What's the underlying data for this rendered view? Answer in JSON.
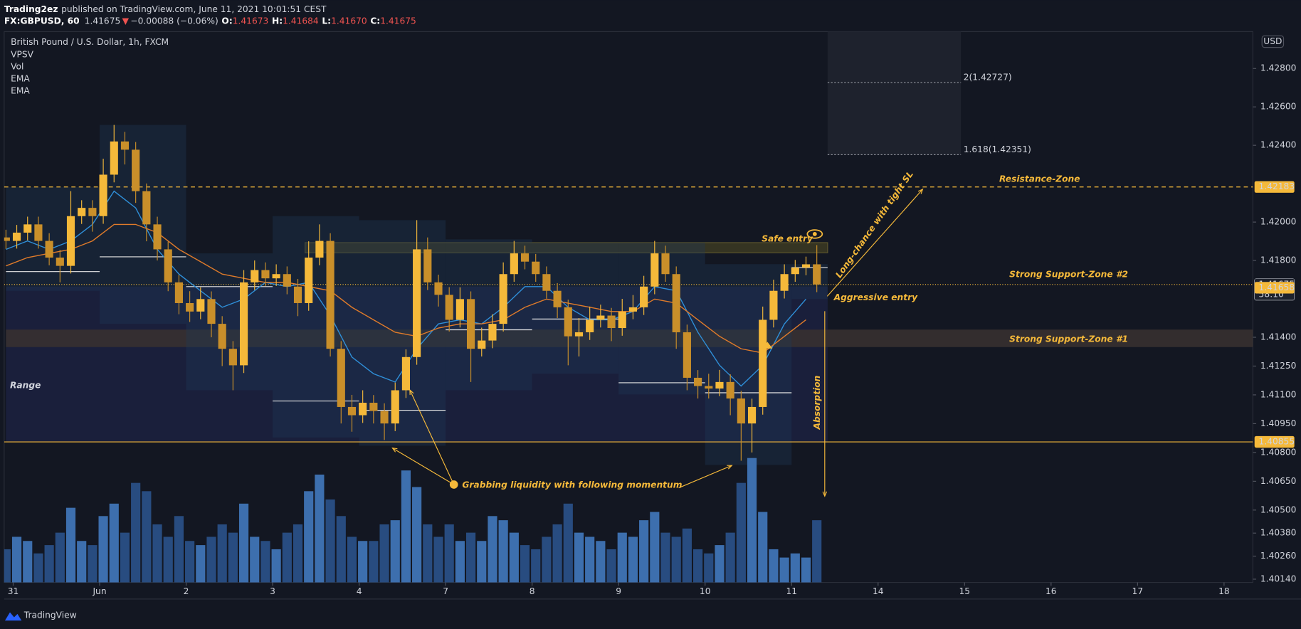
{
  "header": {
    "author": "Trading2ez",
    "published": "published on TradingView.com, June 11, 2021 10:01:51 CEST",
    "symbol": "FX:GBPUSD, 60",
    "last": "1.41675",
    "direction": "▼",
    "change": "−0.00088 (−0.06%)",
    "ohlc": [
      {
        "key": "O:",
        "value": "1.41673"
      },
      {
        "key": "H:",
        "value": "1.41684"
      },
      {
        "key": "L:",
        "value": "1.41670"
      },
      {
        "key": "C:",
        "value": "1.41675"
      }
    ]
  },
  "legend": {
    "title": "British Pound / U.S. Dollar, 1h, FXCM",
    "studies": [
      "VPSV",
      "Vol"
    ]
  },
  "currency": "USD",
  "footer": "TradingView",
  "chart_data": {
    "type": "candlestick",
    "x": [
      -2,
      1,
      4,
      7,
      10,
      13,
      16,
      19,
      22,
      25,
      28,
      31,
      34,
      37,
      40,
      43,
      46,
      49,
      52,
      55,
      58,
      61,
      64,
      67,
      70,
      73,
      76,
      79,
      82,
      85,
      88,
      91,
      94,
      97,
      100,
      103,
      106,
      109,
      112,
      115,
      118,
      121,
      124,
      127,
      130,
      133,
      136,
      139,
      142,
      145,
      148,
      151,
      154,
      157,
      160,
      163,
      166,
      169,
      172,
      175,
      178,
      181,
      184,
      187,
      190,
      193,
      196,
      199,
      202,
      205,
      208,
      211,
      214,
      217,
      220,
      223
    ],
    "open": [
      1.4192,
      1.41902,
      1.41945,
      1.41988,
      1.41902,
      1.41815,
      1.41772,
      1.42031,
      1.42074,
      1.42031,
      1.42247,
      1.4242,
      1.42377,
      1.42161,
      1.41988,
      1.41858,
      1.41686,
      1.41578,
      1.41534,
      1.41599,
      1.4147,
      1.4134,
      1.41254,
      1.41686,
      1.4175,
      1.41707,
      1.41729,
      1.41664,
      1.41578,
      1.41815,
      1.41902,
      1.4134,
      1.41037,
      1.40994,
      1.41059,
      1.41016,
      1.40951,
      1.41124,
      1.41297,
      1.41858,
      1.41686,
      1.41621,
      1.41491,
      1.41599,
      1.4134,
      1.41383,
      1.4147,
      1.41729,
      1.41837,
      1.41794,
      1.41729,
      1.41642,
      1.41556,
      1.41405,
      1.41426,
      1.41491,
      1.41513,
      1.41448,
      1.41534,
      1.41556,
      1.41664,
      1.41837,
      1.41729,
      1.41426,
      1.41189,
      1.41146,
      1.41133,
      1.41167,
      1.41081,
      1.40951,
      1.41037,
      1.41491,
      1.41642,
      1.41729,
      1.41763,
      1.4178
    ],
    "high": [
      1.4196,
      1.41985,
      1.42028,
      1.42028,
      1.41942,
      1.41855,
      1.42161,
      1.42114,
      1.42114,
      1.4233,
      1.42506,
      1.4247,
      1.42417,
      1.42201,
      1.42028,
      1.41898,
      1.41726,
      1.4164,
      1.4166,
      1.41639,
      1.4151,
      1.4138,
      1.4175,
      1.418,
      1.4179,
      1.4178,
      1.41769,
      1.41704,
      1.419,
      1.41988,
      1.41942,
      1.4138,
      1.411,
      1.41124,
      1.41099,
      1.41056,
      1.41164,
      1.41337,
      1.4201,
      1.4192,
      1.41726,
      1.41661,
      1.4166,
      1.41639,
      1.4145,
      1.4152,
      1.4179,
      1.41902,
      1.41877,
      1.41834,
      1.41769,
      1.41682,
      1.41596,
      1.415,
      1.4156,
      1.4157,
      1.41553,
      1.416,
      1.4162,
      1.4172,
      1.41902,
      1.41877,
      1.41769,
      1.41466,
      1.41229,
      1.4121,
      1.4123,
      1.41207,
      1.41121,
      1.4108,
      1.4156,
      1.417,
      1.4178,
      1.41803,
      1.4182,
      1.4188
    ],
    "low": [
      1.4186,
      1.41862,
      1.41905,
      1.41862,
      1.41775,
      1.41686,
      1.41732,
      1.4199,
      1.4195,
      1.41991,
      1.42207,
      1.423,
      1.421,
      1.419,
      1.418,
      1.4164,
      1.4152,
      1.4148,
      1.41494,
      1.414,
      1.4125,
      1.41124,
      1.41214,
      1.41646,
      1.41667,
      1.41667,
      1.41624,
      1.4151,
      1.41538,
      1.41775,
      1.413,
      1.40951,
      1.40908,
      1.40954,
      1.40951,
      1.40865,
      1.40911,
      1.41084,
      1.41257,
      1.41646,
      1.4156,
      1.4143,
      1.41451,
      1.41167,
      1.413,
      1.41343,
      1.4143,
      1.41689,
      1.41754,
      1.41689,
      1.41602,
      1.415,
      1.41254,
      1.413,
      1.41386,
      1.41451,
      1.4138,
      1.41408,
      1.41494,
      1.41516,
      1.41624,
      1.41689,
      1.4134,
      1.41124,
      1.41081,
      1.41081,
      1.41093,
      1.40994,
      1.40757,
      1.408,
      1.40997,
      1.41451,
      1.41602,
      1.41689,
      1.41723,
      1.41635
    ],
    "close": [
      1.41902,
      1.41945,
      1.41988,
      1.41902,
      1.41815,
      1.41772,
      1.42031,
      1.42074,
      1.42031,
      1.42247,
      1.4242,
      1.42377,
      1.42161,
      1.41988,
      1.41858,
      1.41686,
      1.41578,
      1.41534,
      1.41599,
      1.4147,
      1.4134,
      1.41254,
      1.41686,
      1.4175,
      1.41707,
      1.41729,
      1.41664,
      1.41578,
      1.41815,
      1.41902,
      1.4134,
      1.41037,
      1.40994,
      1.41059,
      1.41016,
      1.40951,
      1.41124,
      1.41297,
      1.41858,
      1.41686,
      1.41621,
      1.41491,
      1.41599,
      1.4134,
      1.41383,
      1.4147,
      1.41729,
      1.41837,
      1.41794,
      1.41729,
      1.41642,
      1.41556,
      1.41405,
      1.41426,
      1.41491,
      1.41513,
      1.41448,
      1.41534,
      1.41556,
      1.41664,
      1.41837,
      1.41729,
      1.41426,
      1.41189,
      1.41146,
      1.41133,
      1.41167,
      1.41081,
      1.40951,
      1.41037,
      1.41491,
      1.41642,
      1.41729,
      1.41763,
      1.4178,
      1.41675
    ],
    "up_color": "#f5b93a",
    "down_color": "#c98f2a",
    "volume": {
      "up_color": "#3d6fae",
      "down_color": "#284c80",
      "values": [
        40,
        55,
        50,
        35,
        45,
        60,
        90,
        50,
        45,
        80,
        95,
        60,
        120,
        110,
        70,
        55,
        80,
        50,
        45,
        55,
        70,
        60,
        95,
        55,
        50,
        40,
        60,
        70,
        110,
        130,
        100,
        80,
        55,
        50,
        50,
        70,
        75,
        135,
        115,
        70,
        55,
        70,
        50,
        60,
        50,
        80,
        75,
        60,
        45,
        40,
        55,
        70,
        95,
        60,
        55,
        50,
        40,
        60,
        55,
        75,
        85,
        60,
        55,
        65,
        40,
        35,
        45,
        60,
        120,
        150,
        85,
        40,
        30,
        35,
        30,
        75
      ]
    },
    "ema": {
      "x": [
        -2,
        4,
        10,
        16,
        22,
        28,
        34,
        40,
        46,
        52,
        58,
        64,
        70,
        76,
        82,
        88,
        94,
        100,
        106,
        112,
        118,
        124,
        130,
        136,
        142,
        148,
        154,
        160,
        166,
        172,
        178,
        184,
        190,
        196,
        202,
        208,
        214,
        220
      ],
      "series": [
        {
          "name": "EMA",
          "color": "#2f8fd8",
          "values": [
            1.41858,
            1.41902,
            1.41858,
            1.41902,
            1.41988,
            1.42161,
            1.42074,
            1.41858,
            1.41729,
            1.41642,
            1.41556,
            1.41599,
            1.41686,
            1.41664,
            1.41686,
            1.41513,
            1.41297,
            1.4121,
            1.41167,
            1.4134,
            1.4147,
            1.41491,
            1.4147,
            1.41556,
            1.41664,
            1.41664,
            1.41556,
            1.41491,
            1.41491,
            1.41534,
            1.41664,
            1.41642,
            1.41426,
            1.41254,
            1.41146,
            1.41254,
            1.4147,
            1.41599
          ]
        },
        {
          "name": "EMA",
          "color": "#e07b2a",
          "values": [
            1.41772,
            1.41815,
            1.41837,
            1.41858,
            1.41902,
            1.41988,
            1.41988,
            1.41945,
            1.41858,
            1.41794,
            1.41729,
            1.41707,
            1.41686,
            1.41686,
            1.41664,
            1.41642,
            1.41556,
            1.41491,
            1.41426,
            1.41405,
            1.41448,
            1.4147,
            1.4147,
            1.41491,
            1.41556,
            1.41599,
            1.41578,
            1.41556,
            1.41534,
            1.41534,
            1.41599,
            1.41578,
            1.41491,
            1.41405,
            1.4134,
            1.41318,
            1.41405,
            1.41491
          ]
        }
      ]
    },
    "vpsv": {
      "color": "#1f3a5a",
      "poc_color": "#e8e8e8",
      "sessions": [
        {
          "start": -2,
          "end": 24,
          "high": 1.42182,
          "low": 1.41642,
          "poc": 1.41742
        },
        {
          "start": 24,
          "end": 48,
          "high": 1.42506,
          "low": 1.4147,
          "poc": 1.41819
        },
        {
          "start": 48,
          "end": 72,
          "high": 1.41837,
          "low": 1.41124,
          "poc": 1.41664
        },
        {
          "start": 72,
          "end": 96,
          "high": 1.42031,
          "low": 1.40878,
          "poc": 1.41068
        },
        {
          "start": 96,
          "end": 120,
          "high": 1.4201,
          "low": 1.40835,
          "poc": 1.4102
        },
        {
          "start": 120,
          "end": 144,
          "high": 1.4191,
          "low": 1.41124,
          "poc": 1.41439
        },
        {
          "start": 144,
          "end": 168,
          "high": 1.41893,
          "low": 1.4121,
          "poc": 1.41495
        },
        {
          "start": 168,
          "end": 192,
          "high": 1.41893,
          "low": 1.41102,
          "poc": 1.41163
        },
        {
          "start": 192,
          "end": 216,
          "high": 1.41781,
          "low": 1.40735,
          "poc": 1.41111
        },
        {
          "start": 216,
          "end": 226,
          "high": 1.41781,
          "low": 1.41599,
          "poc": 1.41763
        }
      ]
    },
    "zones": [
      {
        "label": "Range",
        "start": -2,
        "end": 226,
        "high": 1.41664,
        "low": 1.40855,
        "color": "#1c2140"
      },
      {
        "label": "Strong Support-Zone #1",
        "start": -2,
        "end": 344,
        "high": 1.4144,
        "low": 1.41349,
        "color": "#3a3130"
      },
      {
        "label": "Safe entry",
        "start": 81,
        "end": 226,
        "high": 1.41893,
        "low": 1.4184,
        "color": "#3b3a22"
      }
    ],
    "fib": {
      "start": 226,
      "end": 263,
      "color": "#1e222d",
      "levels": [
        {
          "value": 1.42727,
          "label": "2(1.42727)"
        },
        {
          "value": 1.42351,
          "label": "1.618(1.42351)"
        }
      ]
    },
    "price_lines": [
      {
        "value": 1.42183,
        "label": "1.42183",
        "style": "dashed",
        "color": "#f5b93a"
      },
      {
        "value": 1.41675,
        "label": "1.41675",
        "countdown": "58:10",
        "style": "dotted",
        "color": "#f5b93a"
      },
      {
        "value": 1.41658,
        "label": "1.41658",
        "style": "none",
        "color": "#f5b93a"
      },
      {
        "value": 1.40855,
        "label": "1.40855",
        "style": "solid",
        "color": "#f5b93a"
      }
    ],
    "annotations": {
      "resistance": "Resistance-Zone",
      "support2": "Strong Support-Zone #2",
      "absorption": "Absorption",
      "aggressive": "Aggressive entry",
      "long": "Long-chance with tight SL",
      "grabbing": "Grabbing liquidity with following momentum"
    },
    "xlim": [
      -2.5,
      344
    ],
    "ylim": [
      1.40123,
      1.42992
    ],
    "xticks": [
      {
        "value": 0,
        "label": "31"
      },
      {
        "value": 24,
        "label": "Jun"
      },
      {
        "value": 48,
        "label": "2"
      },
      {
        "value": 72,
        "label": "3"
      },
      {
        "value": 96,
        "label": "4"
      },
      {
        "value": 120,
        "label": "7"
      },
      {
        "value": 144,
        "label": "8"
      },
      {
        "value": 168,
        "label": "9"
      },
      {
        "value": 192,
        "label": "10"
      },
      {
        "value": 216,
        "label": "11"
      },
      {
        "value": 240,
        "label": "14"
      },
      {
        "value": 264,
        "label": "15"
      },
      {
        "value": 288,
        "label": "16"
      },
      {
        "value": 312,
        "label": "17"
      },
      {
        "value": 336,
        "label": "18"
      }
    ],
    "yticks": [
      {
        "value": 1.428,
        "label": "1.42800"
      },
      {
        "value": 1.426,
        "label": "1.42600"
      },
      {
        "value": 1.424,
        "label": "1.42400"
      },
      {
        "value": 1.42,
        "label": "1.42000"
      },
      {
        "value": 1.418,
        "label": "1.41800"
      },
      {
        "value": 1.414,
        "label": "1.41400"
      },
      {
        "value": 1.4125,
        "label": "1.41250"
      },
      {
        "value": 1.411,
        "label": "1.41100"
      },
      {
        "value": 1.4095,
        "label": "1.40950"
      },
      {
        "value": 1.408,
        "label": "1.40800"
      },
      {
        "value": 1.4065,
        "label": "1.40650"
      },
      {
        "value": 1.405,
        "label": "1.40500"
      },
      {
        "value": 1.4038,
        "label": "1.40380"
      },
      {
        "value": 1.4026,
        "label": "1.40260"
      },
      {
        "value": 1.4014,
        "label": "1.40140"
      }
    ]
  }
}
